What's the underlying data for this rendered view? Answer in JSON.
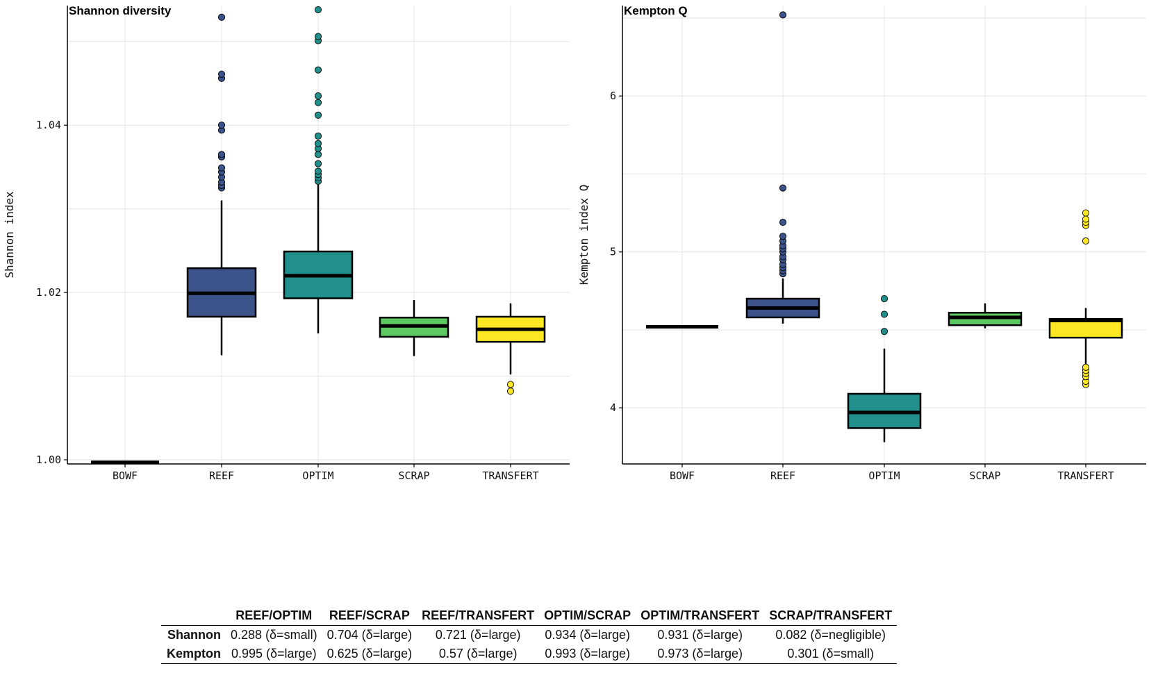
{
  "chart_data": [
    {
      "type": "box",
      "title": "Shannon diversity",
      "ylabel": "Shannon index",
      "xlabel": "",
      "ylim": [
        0.9995,
        1.0543
      ],
      "yticks": [
        1.0,
        1.02,
        1.04
      ],
      "ytick_labels": [
        "1.00",
        "1.02",
        "1.04"
      ],
      "grid": true,
      "categories": [
        "BOWF",
        "REEF",
        "OPTIM",
        "SCRAP",
        "TRANSFERT"
      ],
      "colors": [
        "#000000",
        "#3b528b",
        "#21908d",
        "#5ec962",
        "#fde725"
      ],
      "boxes": [
        {
          "q1": 0.9997,
          "median": 0.9997,
          "q3": 0.9997,
          "whisker_low": 0.9997,
          "whisker_high": 0.9997,
          "outliers": []
        },
        {
          "q1": 1.0171,
          "median": 1.0199,
          "q3": 1.0229,
          "whisker_low": 1.0125,
          "whisker_high": 1.031,
          "outliers": [
            1.0325,
            1.0328,
            1.0332,
            1.0338,
            1.0344,
            1.0349,
            1.0362,
            1.0365,
            1.0394,
            1.04,
            1.0456,
            1.0461,
            1.0529
          ]
        },
        {
          "q1": 1.0193,
          "median": 1.022,
          "q3": 1.0249,
          "whisker_low": 1.0151,
          "whisker_high": 1.0329,
          "outliers": [
            1.0333,
            1.0337,
            1.0341,
            1.0345,
            1.0354,
            1.0365,
            1.0372,
            1.0378,
            1.0387,
            1.0412,
            1.0427,
            1.0435,
            1.0466,
            1.0501,
            1.0506,
            1.0538
          ]
        },
        {
          "q1": 1.0147,
          "median": 1.016,
          "q3": 1.017,
          "whisker_low": 1.0124,
          "whisker_high": 1.0191,
          "outliers": []
        },
        {
          "q1": 1.0141,
          "median": 1.0156,
          "q3": 1.0171,
          "whisker_low": 1.0102,
          "whisker_high": 1.0187,
          "outliers": [
            1.0082,
            1.009
          ]
        }
      ]
    },
    {
      "type": "box",
      "title": "Kempton Q",
      "ylabel": "Kempton index Q",
      "xlabel": "",
      "ylim": [
        3.64,
        6.58
      ],
      "yticks": [
        4,
        5,
        6
      ],
      "ytick_labels": [
        "4",
        "5",
        "6"
      ],
      "grid": true,
      "categories": [
        "BOWF",
        "REEF",
        "OPTIM",
        "SCRAP",
        "TRANSFERT"
      ],
      "colors": [
        "#000000",
        "#3b528b",
        "#21908d",
        "#5ec962",
        "#fde725"
      ],
      "boxes": [
        {
          "q1": 4.52,
          "median": 4.52,
          "q3": 4.52,
          "whisker_low": 4.52,
          "whisker_high": 4.52,
          "outliers": []
        },
        {
          "q1": 4.58,
          "median": 4.64,
          "q3": 4.7,
          "whisker_low": 4.54,
          "whisker_high": 4.83,
          "outliers": [
            4.86,
            4.88,
            4.9,
            4.92,
            4.95,
            4.97,
            5.0,
            5.02,
            5.04,
            5.07,
            5.1,
            5.19,
            5.41,
            6.52
          ]
        },
        {
          "q1": 3.87,
          "median": 3.97,
          "q3": 4.09,
          "whisker_low": 3.78,
          "whisker_high": 4.38,
          "outliers": [
            4.49,
            4.6,
            4.7
          ]
        },
        {
          "q1": 4.53,
          "median": 4.58,
          "q3": 4.61,
          "whisker_low": 4.51,
          "whisker_high": 4.67,
          "outliers": []
        },
        {
          "q1": 4.45,
          "median": 4.56,
          "q3": 4.57,
          "whisker_low": 4.28,
          "whisker_high": 4.64,
          "outliers": [
            4.15,
            4.17,
            4.2,
            4.22,
            4.24,
            4.26,
            5.07,
            5.17,
            5.19,
            5.21,
            5.25
          ]
        }
      ]
    }
  ],
  "stats_table": {
    "columns": [
      "",
      "REEF/OPTIM",
      "REEF/SCRAP",
      "REEF/TRANSFERT",
      "OPTIM/SCRAP",
      "OPTIM/TRANSFERT",
      "SCRAP/TRANSFERT"
    ],
    "rows": [
      {
        "label": "Shannon",
        "cells": [
          "0.288 (δ=small)",
          "0.704 (δ=large)",
          "0.721 (δ=large)",
          "0.934 (δ=large)",
          "0.931 (δ=large)",
          "0.082 (δ=negligible)"
        ]
      },
      {
        "label": "Kempton",
        "cells": [
          "0.995 (δ=large)",
          "0.625 (δ=large)",
          "0.57 (δ=large)",
          "0.993 (δ=large)",
          "0.973 (δ=large)",
          "0.301 (δ=small)"
        ]
      }
    ]
  }
}
